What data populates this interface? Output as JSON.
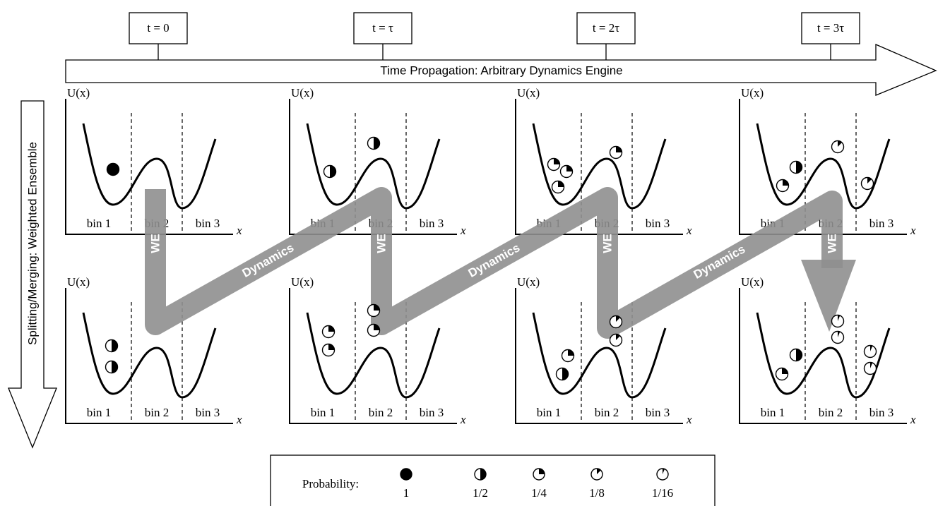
{
  "time_labels": [
    "t = 0",
    "t = τ",
    "t = 2τ",
    "t = 3τ"
  ],
  "time_arrow_label": "Time Propagation: Arbitrary Dynamics Engine",
  "side_arrow_label": "Splitting/Merging: Weighted Ensemble",
  "step_labels": {
    "we": "WE",
    "dynamics": "Dynamics"
  },
  "axis": {
    "y_label": "U(x)",
    "x_label": "x",
    "bins": [
      "bin 1",
      "bin 2",
      "bin 3"
    ]
  },
  "panels": [
    [
      1
    ],
    [
      0.5,
      0.5
    ],
    [
      0.25,
      0.25,
      0.25,
      0.25
    ],
    [
      0.25,
      0.5,
      0.125,
      0.125
    ],
    [
      0.5,
      0.5
    ],
    [
      0.25,
      0.25,
      0.25,
      0.25
    ],
    [
      0.25,
      0.5,
      0.125,
      0.125
    ],
    [
      0.25,
      0.5,
      0.0625,
      0.0625,
      0.0625,
      0.0625
    ]
  ],
  "legend": {
    "title": "Probability:",
    "items": [
      1,
      {
        "value": 0.5,
        "label": "1/2"
      },
      {
        "value": 0.25,
        "label": "1/4"
      },
      {
        "value": 0.125,
        "label": "1/8"
      },
      {
        "value": 0.0625,
        "label": "1/16"
      }
    ]
  }
}
